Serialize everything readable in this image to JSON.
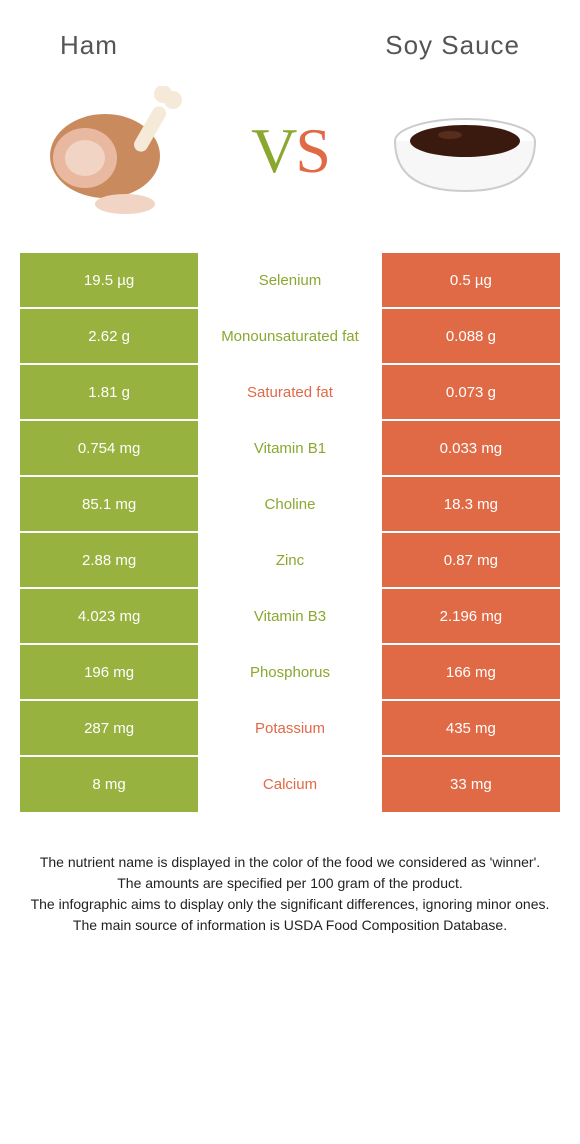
{
  "colors": {
    "left": "#97b23f",
    "right": "#e06a45",
    "mid_left": "#8aa82f",
    "mid_right": "#e06a45"
  },
  "foods": {
    "left": "Ham",
    "right": "Soy sauce"
  },
  "vs": {
    "v": "V",
    "s": "S"
  },
  "rows": [
    {
      "left": "19.5 µg",
      "nutrient": "Selenium",
      "right": "0.5 µg",
      "winner": "left"
    },
    {
      "left": "2.62 g",
      "nutrient": "Monounsaturated fat",
      "right": "0.088 g",
      "winner": "left"
    },
    {
      "left": "1.81 g",
      "nutrient": "Saturated fat",
      "right": "0.073 g",
      "winner": "right"
    },
    {
      "left": "0.754 mg",
      "nutrient": "Vitamin B1",
      "right": "0.033 mg",
      "winner": "left"
    },
    {
      "left": "85.1 mg",
      "nutrient": "Choline",
      "right": "18.3 mg",
      "winner": "left"
    },
    {
      "left": "2.88 mg",
      "nutrient": "Zinc",
      "right": "0.87 mg",
      "winner": "left"
    },
    {
      "left": "4.023 mg",
      "nutrient": "Vitamin B3",
      "right": "2.196 mg",
      "winner": "left"
    },
    {
      "left": "196 mg",
      "nutrient": "Phosphorus",
      "right": "166 mg",
      "winner": "left"
    },
    {
      "left": "287 mg",
      "nutrient": "Potassium",
      "right": "435 mg",
      "winner": "right"
    },
    {
      "left": "8 mg",
      "nutrient": "Calcium",
      "right": "33 mg",
      "winner": "right"
    }
  ],
  "footer": {
    "l1": "The nutrient name is displayed in the color of the food we considered as 'winner'.",
    "l2": "The amounts are specified per 100 gram of the product.",
    "l3": "The infographic aims to display only the significant differences, ignoring minor ones.",
    "l4": "The main source of information is USDA Food Composition Database."
  }
}
